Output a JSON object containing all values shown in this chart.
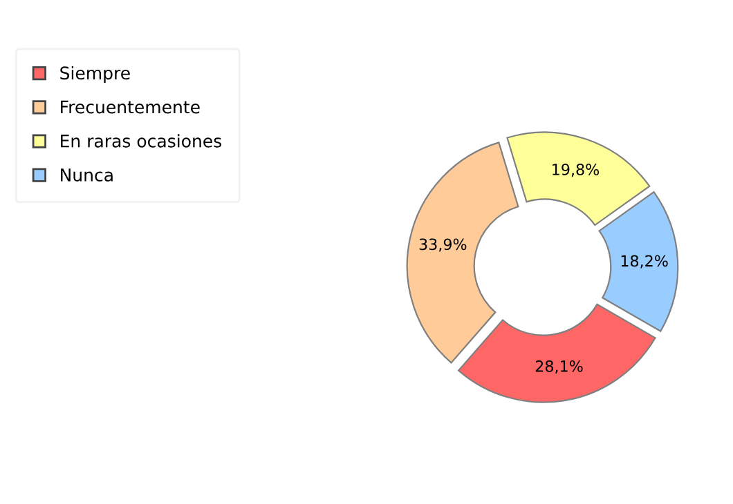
{
  "chart_data": {
    "type": "donut",
    "categories": [
      "Siempre",
      "Frecuentemente",
      "En raras ocasiones",
      "Nunca"
    ],
    "values": [
      28.1,
      33.9,
      19.8,
      18.2
    ],
    "colors": [
      "#ff6666",
      "#ffcc99",
      "#ffff99",
      "#99ccff"
    ],
    "value_labels": [
      "28,1%",
      "33,9%",
      "19,8%",
      "18,2%"
    ],
    "legend": "top left"
  }
}
